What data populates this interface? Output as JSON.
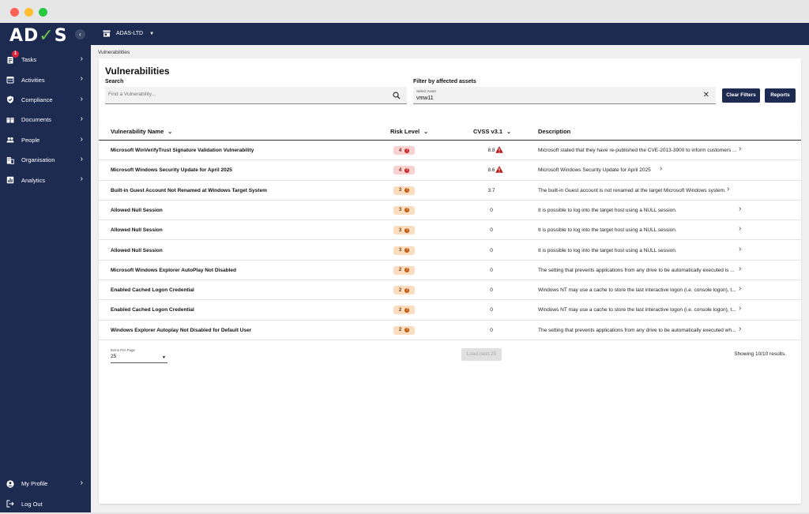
{
  "app": {
    "logo": "ADAS",
    "org_name": "ADAS-LTD",
    "breadcrumb": "Vulnerabilities"
  },
  "sidebar": {
    "items": [
      {
        "label": "Tasks",
        "icon": "clipboard-icon",
        "badge": "1"
      },
      {
        "label": "Activities",
        "icon": "calendar-icon"
      },
      {
        "label": "Compliance",
        "icon": "shield-check-icon"
      },
      {
        "label": "Documents",
        "icon": "book-icon"
      },
      {
        "label": "People",
        "icon": "people-icon"
      },
      {
        "label": "Organisation",
        "icon": "building-icon"
      },
      {
        "label": "Analytics",
        "icon": "chart-icon"
      }
    ],
    "bottom": [
      {
        "label": "My Profile",
        "icon": "account-icon"
      },
      {
        "label": "Log Out",
        "icon": "logout-icon"
      }
    ]
  },
  "filters": {
    "title": "Vulnerabilities",
    "search_label": "Search",
    "search_placeholder": "Find a Vulnerability...",
    "asset_label": "Filter by affected assets",
    "asset_field_label": "Select Asset",
    "asset_value": "vmw11",
    "clear_button": "Clear Filters",
    "reports_button": "Reports"
  },
  "table": {
    "columns": {
      "name": "Vulnerability Name",
      "risk": "Risk Level",
      "cvss": "CVSS v3.1",
      "description": "Description"
    },
    "rows": [
      {
        "name": "Microsoft WinVerifyTrust Signature Validation Vulnerability",
        "risk": "4",
        "cvss": "8.8",
        "warning": true,
        "description": "Microsoft stated that they have re-published the CVE-2013-3900 to inform customers ..."
      },
      {
        "name": "Microsoft Windows Security Update for April 2025",
        "risk": "4",
        "cvss": "8.6",
        "warning": true,
        "description": "Microsoft Windows Security Update for April 2025"
      },
      {
        "name": "Built-in Guest Account Not Renamed at Windows Target System",
        "risk": "3",
        "cvss": "3.7",
        "warning": false,
        "description": "The built-in Guest account is not renamed at the target Microsoft Windows system."
      },
      {
        "name": "Allowed Null Session",
        "risk": "3",
        "cvss": "0",
        "warning": false,
        "description": "It is possible to log into the target host using a NULL session."
      },
      {
        "name": "Allowed Null Session",
        "risk": "3",
        "cvss": "0",
        "warning": false,
        "description": "It is possible to log into the target host using a NULL session."
      },
      {
        "name": "Allowed Null Session",
        "risk": "3",
        "cvss": "0",
        "warning": false,
        "description": "It is possible to log into the target host using a NULL session."
      },
      {
        "name": "Microsoft Windows Explorer AutoPlay Not Disabled",
        "risk": "2",
        "cvss": "0",
        "warning": false,
        "description": "The setting that prevents applications from any drive to be automatically executed is ..."
      },
      {
        "name": "Enabled Cached Logon Credential",
        "risk": "2",
        "cvss": "0",
        "warning": false,
        "description": "Windows NT may use a cache to store the last interactive logon (i.e. console logon), t..."
      },
      {
        "name": "Enabled Cached Logon Credential",
        "risk": "2",
        "cvss": "0",
        "warning": false,
        "description": "Windows NT may use a cache to store the last interactive logon (i.e. console logon), t..."
      },
      {
        "name": "Windows Explorer Autoplay Not Disabled for Default User",
        "risk": "2",
        "cvss": "0",
        "warning": false,
        "description": "The setting that prevents applications from any drive to be automatically executed wh..."
      }
    ]
  },
  "footer": {
    "items_per_page_label": "Items Per Page",
    "items_per_page_value": "25",
    "load_button": "Load next 25",
    "showing": "Showing 10/10 results."
  }
}
